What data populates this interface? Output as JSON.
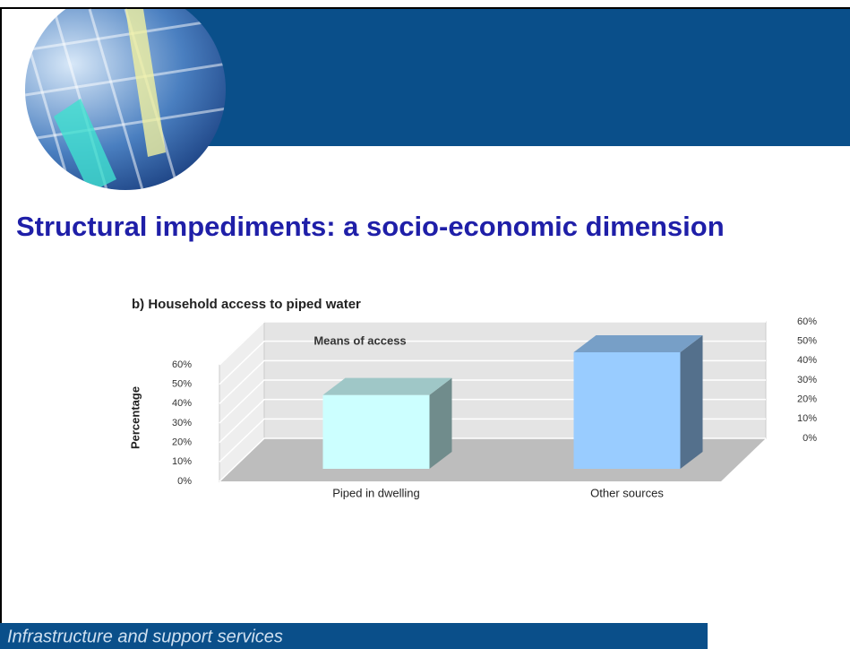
{
  "header": {
    "title": "Structural impediments: a socio-economic dimension"
  },
  "footer": {
    "text": "Infrastructure and support services"
  },
  "chart_data": {
    "type": "bar3d",
    "title": "b) Household access to piped water",
    "y_label": "Percentage",
    "annotation": "Means of access",
    "categories": [
      "Piped in dwelling",
      "Other sources"
    ],
    "values": [
      38,
      60
    ],
    "colors": [
      "#ccffff",
      "#99ccff"
    ],
    "ylim": [
      0,
      60
    ],
    "yticks": [
      {
        "value": 0,
        "label": "0%"
      },
      {
        "value": 10,
        "label": "10%"
      },
      {
        "value": 20,
        "label": "20%"
      },
      {
        "value": 30,
        "label": "30%"
      },
      {
        "value": 40,
        "label": "40%"
      },
      {
        "value": 50,
        "label": "50%"
      },
      {
        "value": 60,
        "label": "60%"
      }
    ],
    "grid": true
  }
}
